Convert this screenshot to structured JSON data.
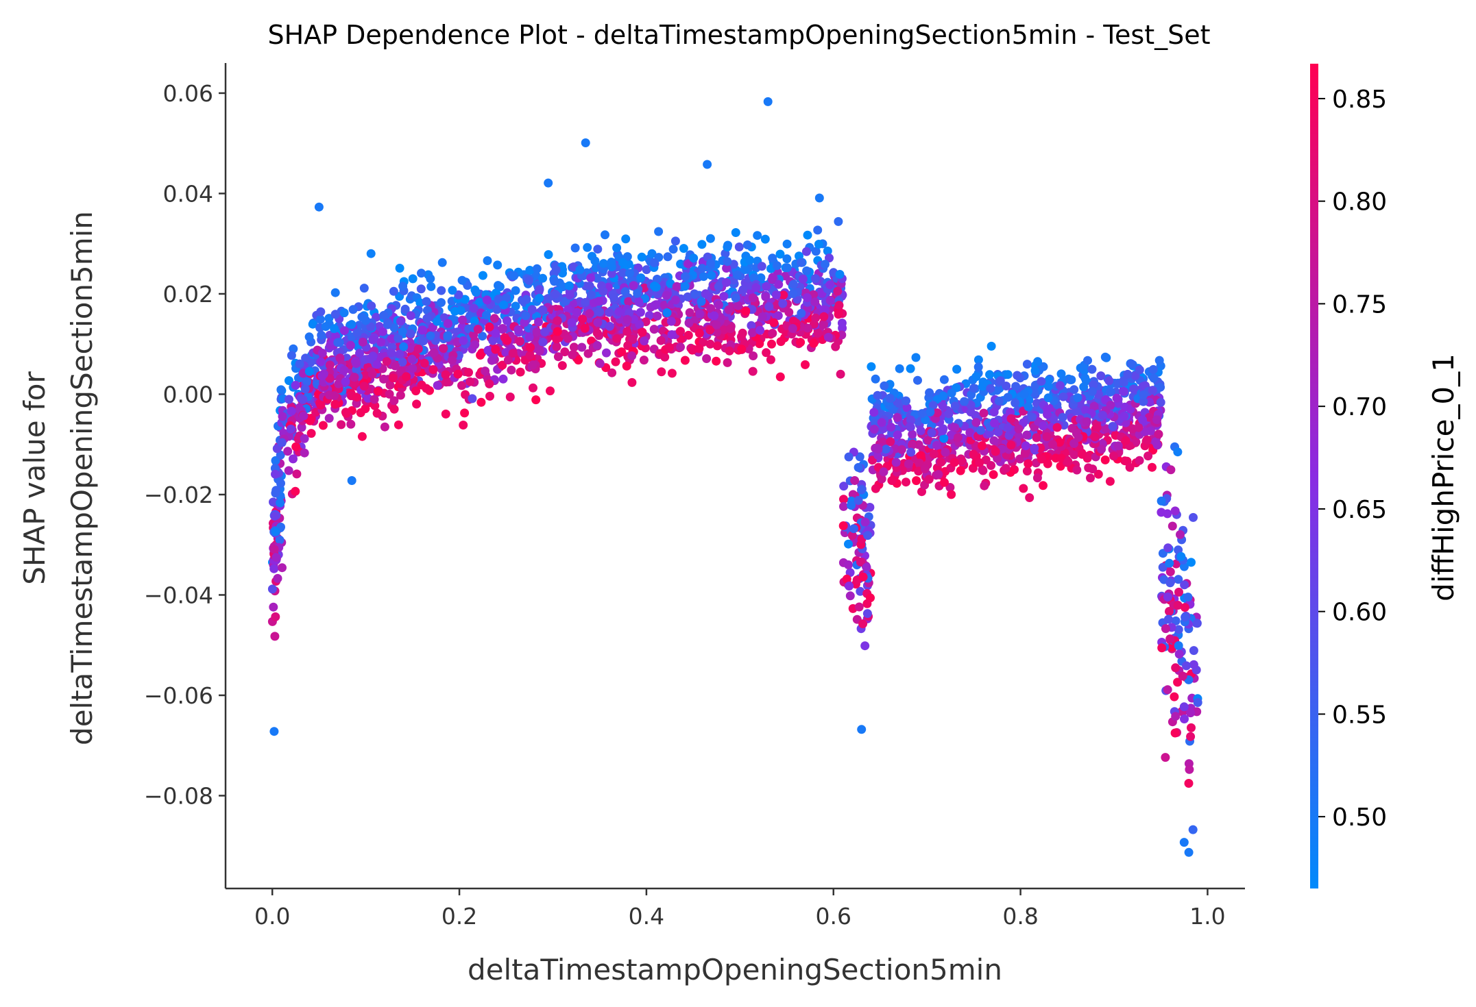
{
  "chart_data": {
    "type": "scatter",
    "title": "SHAP Dependence Plot - deltaTimestampOpeningSection5min - Test_Set",
    "xlabel": "deltaTimestampOpeningSection5min",
    "ylabel_lines": [
      "SHAP value for",
      "deltaTimestampOpeningSection5min"
    ],
    "xlim": [
      -0.05,
      1.04
    ],
    "ylim": [
      -0.0985,
      0.066
    ],
    "xticks": [
      0.0,
      0.2,
      0.4,
      0.6,
      0.8,
      1.0
    ],
    "xtick_labels": [
      "0.0",
      "0.2",
      "0.4",
      "0.6",
      "0.8",
      "1.0"
    ],
    "yticks": [
      0.06,
      0.04,
      0.02,
      0.0,
      -0.02,
      -0.04,
      -0.06,
      -0.08
    ],
    "ytick_labels": [
      "0.06",
      "0.04",
      "0.02",
      "0.00",
      "−0.02",
      "−0.04",
      "−0.06",
      "−0.08"
    ],
    "grid": false,
    "colorbar": {
      "label": "diffHighPrice_0_1",
      "range": [
        0.465,
        0.867
      ],
      "ticks": [
        0.5,
        0.55,
        0.6,
        0.65,
        0.7,
        0.75,
        0.8,
        0.85
      ],
      "tick_labels": [
        "0.50",
        "0.55",
        "0.60",
        "0.65",
        "0.70",
        "0.75",
        "0.80",
        "0.85"
      ],
      "low_color": "#008afb",
      "mid_color": "#8a2be2",
      "high_color": "#ff0052"
    },
    "segments": [
      {
        "x": [
          0.0,
          0.01
        ],
        "shap_center": [
          -0.035,
          -0.015
        ],
        "spread": 0.016,
        "color_center": 0.66
      },
      {
        "x": [
          0.01,
          0.05
        ],
        "shap_center": [
          -0.008,
          0.006
        ],
        "spread": 0.01,
        "color_center": 0.64
      },
      {
        "x": [
          0.05,
          0.3
        ],
        "shap_center": [
          0.007,
          0.016
        ],
        "spread": 0.007,
        "color_center": 0.63
      },
      {
        "x": [
          0.3,
          0.61
        ],
        "shap_center": [
          0.018,
          0.021
        ],
        "spread": 0.006,
        "color_center": 0.63
      },
      {
        "x": [
          0.61,
          0.64
        ],
        "shap_center": [
          -0.02,
          -0.03
        ],
        "spread": 0.014,
        "color_center": 0.6
      },
      {
        "x": [
          0.64,
          0.95
        ],
        "shap_center": [
          -0.007,
          -0.002
        ],
        "spread": 0.005,
        "color_center": 0.63
      },
      {
        "x": [
          0.95,
          0.99
        ],
        "shap_center": [
          -0.035,
          -0.055
        ],
        "spread": 0.02,
        "color_center": 0.62
      }
    ],
    "outliers": [
      {
        "x": 0.53,
        "y": 0.0583
      },
      {
        "x": 0.335,
        "y": 0.0501
      },
      {
        "x": 0.465,
        "y": 0.0458
      },
      {
        "x": 0.295,
        "y": 0.0421
      },
      {
        "x": 0.05,
        "y": 0.0373
      },
      {
        "x": 0.585,
        "y": 0.0391
      },
      {
        "x": 0.98,
        "y": -0.0913
      },
      {
        "x": 0.975,
        "y": -0.0893
      },
      {
        "x": 0.002,
        "y": -0.0672
      },
      {
        "x": 0.63,
        "y": -0.0668
      },
      {
        "x": 0.085,
        "y": -0.0172
      }
    ]
  }
}
